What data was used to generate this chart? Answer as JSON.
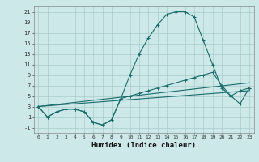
{
  "title": "",
  "xlabel": "Humidex (Indice chaleur)",
  "bg_color": "#cce8e8",
  "grid_color": "#aacccc",
  "line_color": "#1a6b6b",
  "xlim": [
    -0.5,
    23.5
  ],
  "ylim": [
    -2,
    22
  ],
  "yticks": [
    -1,
    1,
    3,
    5,
    7,
    9,
    11,
    13,
    15,
    17,
    19,
    21
  ],
  "xticks": [
    0,
    1,
    2,
    3,
    4,
    5,
    6,
    7,
    8,
    9,
    10,
    11,
    12,
    13,
    14,
    15,
    16,
    17,
    18,
    19,
    20,
    21,
    22,
    23
  ],
  "line1_x": [
    0,
    1,
    2,
    3,
    4,
    5,
    6,
    7,
    8,
    9,
    10,
    11,
    12,
    13,
    14,
    15,
    16,
    17,
    18,
    19,
    20,
    21,
    22,
    23
  ],
  "line1_y": [
    3,
    1,
    2,
    2.5,
    2.5,
    2,
    0,
    -0.5,
    0.5,
    4.5,
    9,
    13,
    16,
    18.5,
    20.5,
    21,
    21,
    20,
    15.5,
    11,
    6.5,
    5,
    3.5,
    6.5
  ],
  "line2_x": [
    0,
    1,
    2,
    3,
    4,
    5,
    6,
    7,
    8,
    9,
    10,
    11,
    12,
    13,
    14,
    15,
    16,
    17,
    18,
    19,
    20,
    21,
    22,
    23
  ],
  "line2_y": [
    3,
    1,
    2,
    2.5,
    2.5,
    2,
    0,
    -0.5,
    0.5,
    4.5,
    5,
    5.5,
    6,
    6.5,
    7,
    7.5,
    8,
    8.5,
    9,
    9.5,
    7,
    5,
    6,
    6.5
  ],
  "line3_x": [
    0,
    23
  ],
  "line3_y": [
    3,
    7.5
  ],
  "line4_x": [
    0,
    23
  ],
  "line4_y": [
    3,
    6.0
  ]
}
